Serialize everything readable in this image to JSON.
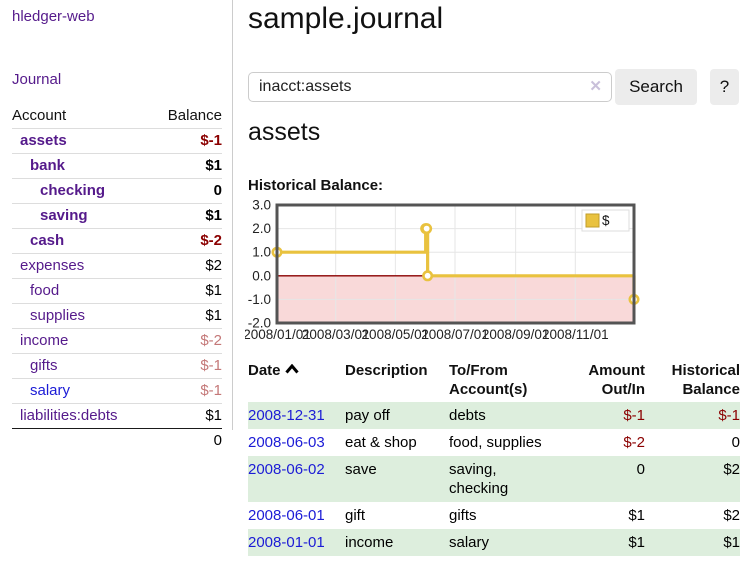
{
  "colors": {
    "brand_purple": "#551a8b",
    "link_blue": "#1c1cd6",
    "neg_strong": "#8b0000",
    "neg_soft": "#c47878",
    "stripe_green": "#ddeedd",
    "button_bg": "#ececec",
    "border_gray": "#cccccc",
    "chart_line": "#e9c23f",
    "chart_pink": "#f9d9d9",
    "chart_zero": "#8b0000",
    "chart_border": "#545454",
    "chart_grid": "#e6e6e6"
  },
  "sidebar": {
    "brand": "hledger-web",
    "nav_journal": "Journal",
    "accounts": {
      "header_account": "Account",
      "header_balance": "Balance",
      "rows": [
        {
          "label": "assets",
          "indent": 1,
          "bold": true,
          "link": "purple",
          "balance": "$-1",
          "tone": "neg-strong"
        },
        {
          "label": "bank",
          "indent": 2,
          "bold": true,
          "link": "purple",
          "balance": "$1",
          "tone": "normal"
        },
        {
          "label": "checking",
          "indent": 3,
          "bold": true,
          "link": "purple",
          "balance": "0",
          "tone": "normal"
        },
        {
          "label": "saving",
          "indent": 3,
          "bold": true,
          "link": "purple",
          "balance": "$1",
          "tone": "normal"
        },
        {
          "label": "cash",
          "indent": 2,
          "bold": true,
          "link": "purple",
          "balance": "$-2",
          "tone": "neg-strong"
        },
        {
          "label": "expenses",
          "indent": 1,
          "bold": false,
          "link": "purple",
          "balance": "$2",
          "tone": "normal"
        },
        {
          "label": "food",
          "indent": 2,
          "bold": false,
          "link": "purple",
          "balance": "$1",
          "tone": "normal"
        },
        {
          "label": "supplies",
          "indent": 2,
          "bold": false,
          "link": "purple",
          "balance": "$1",
          "tone": "normal"
        },
        {
          "label": "income",
          "indent": 1,
          "bold": false,
          "link": "purple",
          "balance": "$-2",
          "tone": "neg-soft"
        },
        {
          "label": "gifts",
          "indent": 2,
          "bold": false,
          "link": "purple",
          "balance": "$-1",
          "tone": "neg-soft"
        },
        {
          "label": "salary",
          "indent": 2,
          "bold": false,
          "link": "blue",
          "balance": "$-1",
          "tone": "neg-soft"
        },
        {
          "label": "liabilities:debts",
          "indent": 1,
          "bold": false,
          "link": "purple",
          "balance": "$1",
          "tone": "normal"
        }
      ],
      "total": "0"
    }
  },
  "main": {
    "title": "sample.journal",
    "search": {
      "value": "inacct:assets",
      "clear": "✕",
      "button": "Search",
      "help": "?"
    },
    "heading": "assets",
    "chart_label": "Historical Balance:"
  },
  "chart_data": {
    "type": "line",
    "step": true,
    "title": "Historical Balance",
    "legend": "$",
    "legend_position": "top-right",
    "grid": true,
    "xlim": [
      "2008-01-01",
      "2008-12-31"
    ],
    "ylim": [
      -2,
      3
    ],
    "y_ticks": [
      3.0,
      2.0,
      1.0,
      0.0,
      -1.0,
      -2.0
    ],
    "x_ticks": [
      {
        "date": "2008-01-01",
        "label": "2008/01/01"
      },
      {
        "date": "2008-03-01",
        "label": "2008/03/01"
      },
      {
        "date": "2008-05-01",
        "label": "2008/05/01"
      },
      {
        "date": "2008-07-01",
        "label": "2008/07/01"
      },
      {
        "date": "2008-09-01",
        "label": "2008/09/01"
      },
      {
        "date": "2008-11-01",
        "label": "2008/11/01"
      }
    ],
    "series": [
      {
        "name": "$",
        "points": [
          [
            "2008-01-01",
            1
          ],
          [
            "2008-06-01",
            2
          ],
          [
            "2008-06-02",
            2
          ],
          [
            "2008-06-03",
            0
          ],
          [
            "2008-12-31",
            -1
          ]
        ]
      }
    ],
    "negative_region": true
  },
  "register": {
    "headers": {
      "date": "Date",
      "description": "Description",
      "tofrom": "To/From Account(s)",
      "amount": "Amount Out/In",
      "balance": "Historical Balance"
    },
    "rows": [
      {
        "date": "2008-12-31",
        "description": "pay off",
        "accounts": "debts",
        "amount": "$-1",
        "amount_neg": true,
        "balance": "$-1",
        "balance_neg": true
      },
      {
        "date": "2008-06-03",
        "description": "eat & shop",
        "accounts": "food, supplies",
        "amount": "$-2",
        "amount_neg": true,
        "balance": "0",
        "balance_neg": false
      },
      {
        "date": "2008-06-02",
        "description": "save",
        "accounts": "saving, checking",
        "amount": "0",
        "amount_neg": false,
        "balance": "$2",
        "balance_neg": false
      },
      {
        "date": "2008-06-01",
        "description": "gift",
        "accounts": "gifts",
        "amount": "$1",
        "amount_neg": false,
        "balance": "$2",
        "balance_neg": false
      },
      {
        "date": "2008-01-01",
        "description": "income",
        "accounts": "salary",
        "amount": "$1",
        "amount_neg": false,
        "balance": "$1",
        "balance_neg": false
      }
    ]
  }
}
